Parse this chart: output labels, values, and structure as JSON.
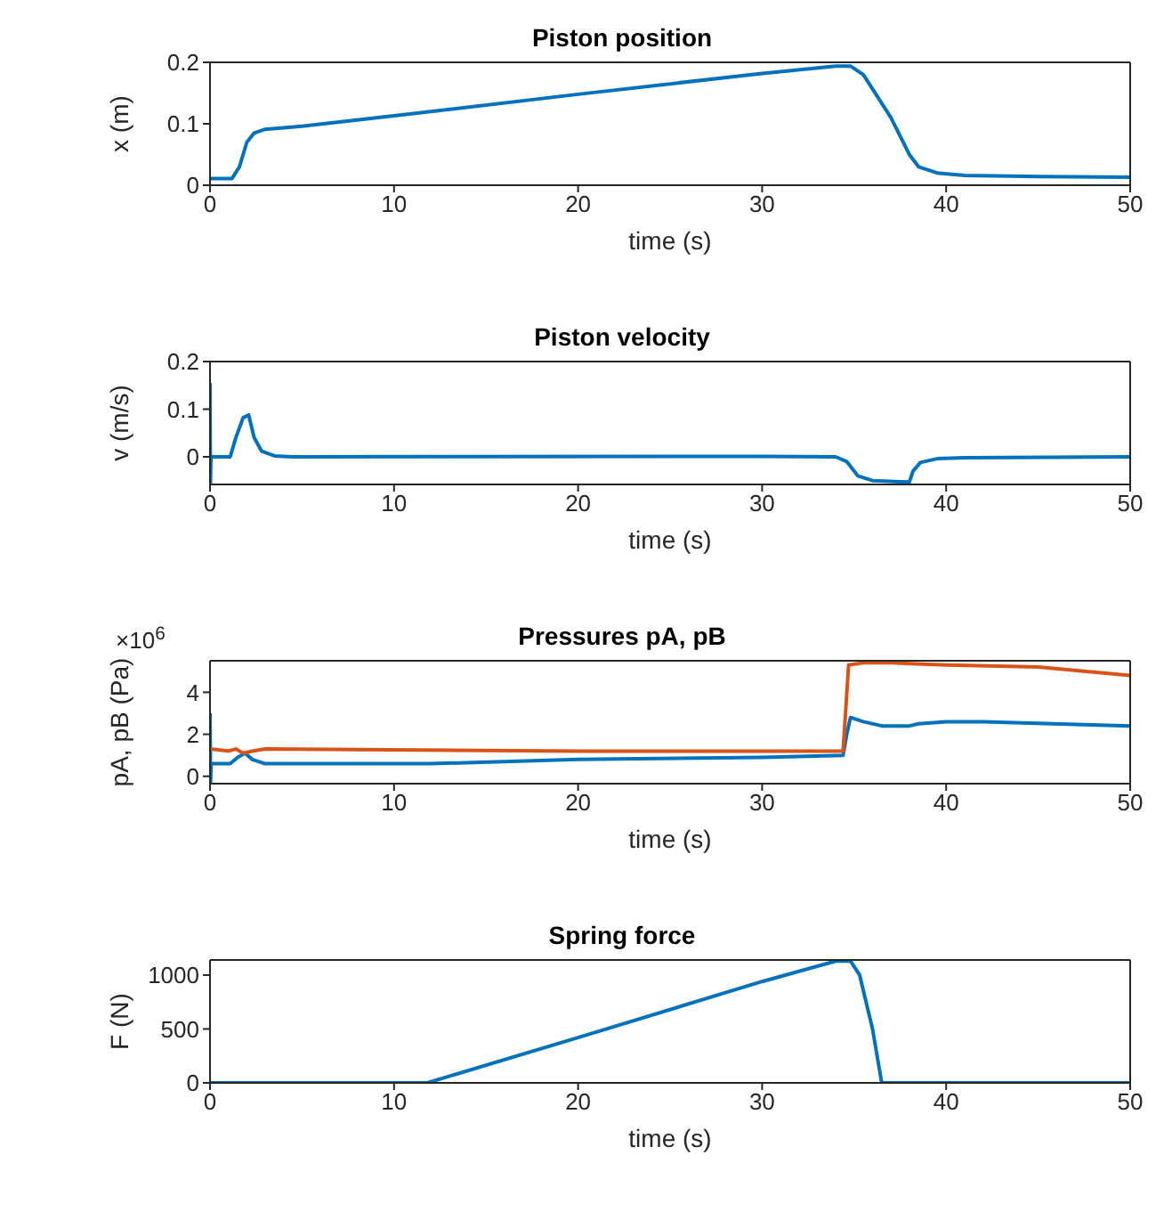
{
  "chart_data": [
    {
      "type": "line",
      "title": "Piston position",
      "xlabel": "time (s)",
      "ylabel": "x (m)",
      "xlim": [
        0,
        50
      ],
      "xticks": [
        0,
        10,
        20,
        30,
        40,
        50
      ],
      "ylim": [
        0,
        0.2
      ],
      "yticks": [
        0,
        0.1,
        0.2
      ],
      "series": [
        {
          "color": "#0072bd",
          "x": [
            0,
            1.2,
            1.6,
            2.0,
            2.4,
            3,
            5,
            10,
            20,
            30,
            34,
            34.8,
            35.5,
            37,
            38,
            38.5,
            39.5,
            41,
            45,
            50
          ],
          "values": [
            0.011,
            0.011,
            0.03,
            0.07,
            0.085,
            0.091,
            0.096,
            0.113,
            0.148,
            0.182,
            0.194,
            0.194,
            0.18,
            0.11,
            0.05,
            0.03,
            0.02,
            0.016,
            0.014,
            0.013
          ]
        }
      ]
    },
    {
      "type": "line",
      "title": "Piston velocity",
      "xlabel": "time (s)",
      "ylabel": "v (m/s)",
      "xlim": [
        0,
        50
      ],
      "xticks": [
        0,
        10,
        20,
        30,
        40,
        50
      ],
      "ylim": [
        -0.058,
        0.2
      ],
      "yticks": [
        0,
        0.1,
        0.2
      ],
      "series": [
        {
          "color": "#0072bd",
          "x": [
            0,
            0.02,
            0.05,
            1.1,
            1.4,
            1.8,
            2.1,
            2.4,
            2.8,
            3.5,
            4.5,
            30,
            34,
            34.6,
            35.2,
            36,
            38,
            38.2,
            38.6,
            39.5,
            41,
            50
          ],
          "values": [
            0.155,
            -0.058,
            0,
            0,
            0.04,
            0.082,
            0.088,
            0.04,
            0.012,
            0.002,
            0,
            0.001,
            0,
            -0.01,
            -0.04,
            -0.05,
            -0.053,
            -0.03,
            -0.012,
            -0.004,
            -0.002,
            0
          ]
        }
      ]
    },
    {
      "type": "line",
      "title": "Pressures pA, pB",
      "xlabel": "time (s)",
      "ylabel": "pA, pB (Pa)",
      "annotations": [
        "×10$^{6}$"
      ],
      "xlim": [
        0,
        50
      ],
      "xticks": [
        0,
        10,
        20,
        30,
        40,
        50
      ],
      "ylim": [
        -0.35,
        5.5
      ],
      "yticks": [
        0,
        2,
        4
      ],
      "series": [
        {
          "color": "#0072bd",
          "x": [
            0,
            0.03,
            0.06,
            1.1,
            1.5,
            1.9,
            2.3,
            3,
            5,
            12,
            20,
            30,
            34.4,
            34.6,
            34.8,
            35.5,
            36.5,
            38,
            38.5,
            40,
            42,
            50
          ],
          "values": [
            3.0,
            -0.3,
            0.6,
            0.6,
            0.9,
            1.1,
            0.8,
            0.6,
            0.6,
            0.6,
            0.8,
            0.9,
            1.0,
            2.0,
            2.8,
            2.6,
            2.4,
            2.4,
            2.5,
            2.6,
            2.6,
            2.4
          ]
        },
        {
          "color": "#d95319",
          "x": [
            0,
            1,
            1.4,
            1.8,
            2.3,
            3,
            20,
            34.4,
            34.7,
            35.5,
            37,
            40,
            45,
            50
          ],
          "values": [
            1.3,
            1.2,
            1.3,
            1.1,
            1.2,
            1.3,
            1.2,
            1.2,
            5.3,
            5.4,
            5.4,
            5.3,
            5.2,
            4.8
          ]
        }
      ]
    },
    {
      "type": "line",
      "title": "Spring force",
      "xlabel": "time (s)",
      "ylabel": "F (N)",
      "xlim": [
        0,
        50
      ],
      "xticks": [
        0,
        10,
        20,
        30,
        40,
        50
      ],
      "ylim": [
        0,
        1140
      ],
      "yticks": [
        0,
        500,
        1000
      ],
      "series": [
        {
          "color": "#0072bd",
          "x": [
            0,
            11.8,
            20,
            30,
            34,
            34.8,
            35.3,
            36,
            36.5,
            50
          ],
          "values": [
            0,
            0,
            420,
            940,
            1130,
            1130,
            1000,
            500,
            0,
            0
          ]
        }
      ]
    }
  ]
}
